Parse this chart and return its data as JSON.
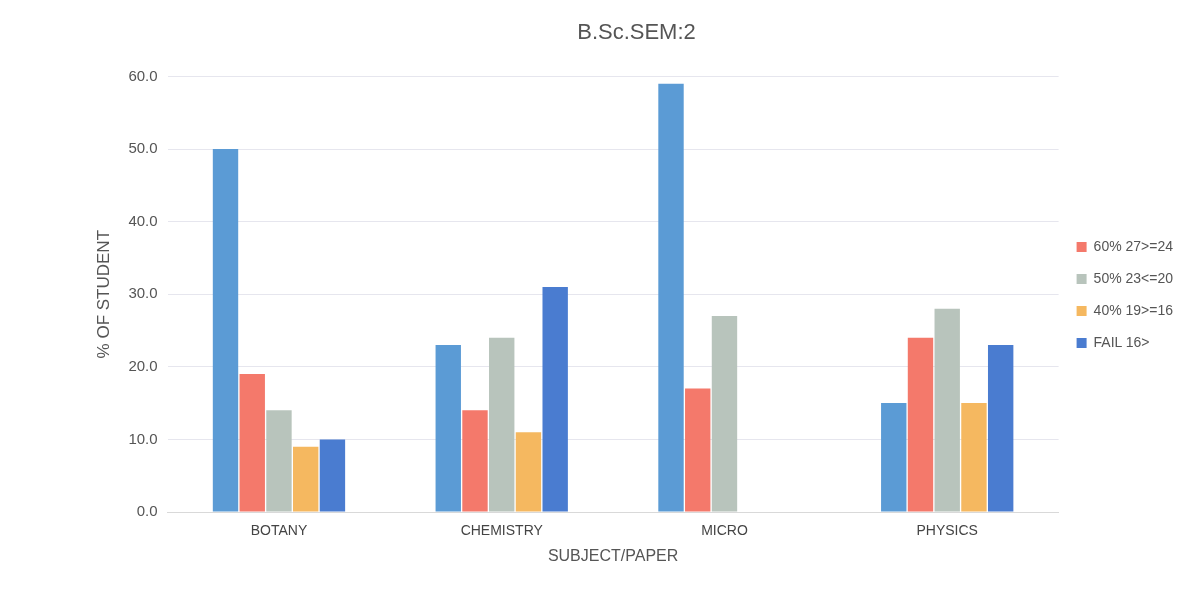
{
  "chart_data": {
    "type": "bar",
    "title": "B.Sc.SEM:2",
    "xlabel": "SUBJECT/PAPER",
    "ylabel": "% OF STUDENT",
    "categories": [
      "BOTANY",
      "CHEMISTRY",
      "MICRO",
      "PHYSICS"
    ],
    "series": [
      {
        "color": "#5b9bd5",
        "values": [
          50,
          23,
          59,
          15
        ]
      },
      {
        "name": "60% 27>=24",
        "color": "#f4796b",
        "values": [
          19,
          14,
          17,
          24
        ]
      },
      {
        "name": "50% 23<=20",
        "color": "#b8c4bc",
        "values": [
          14,
          24,
          27,
          28
        ]
      },
      {
        "name": "40% 19>=16",
        "color": "#f5b860",
        "values": [
          9,
          11,
          0,
          15
        ]
      },
      {
        "name": "FAIL 16>",
        "color": "#4a7cd0",
        "values": [
          10,
          31,
          0,
          23
        ]
      }
    ],
    "ylim": [
      0,
      60
    ],
    "yticks": [
      {
        "value": 0,
        "label": "0.0"
      },
      {
        "value": 10,
        "label": "10.0"
      },
      {
        "value": 20,
        "label": "20.0"
      },
      {
        "value": 30,
        "label": "30.0"
      },
      {
        "value": 40,
        "label": "40.0"
      },
      {
        "value": 50,
        "label": "50.0"
      },
      {
        "value": 60,
        "label": "60.0"
      }
    ],
    "grid": "y",
    "legend": "right"
  }
}
